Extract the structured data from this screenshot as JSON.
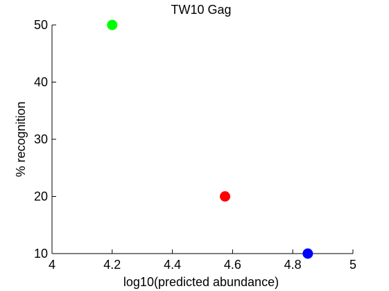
{
  "chart_data": {
    "type": "scatter",
    "title": "TW10 Gag",
    "xlabel": "log10(predicted abundance)",
    "ylabel": "% recognition",
    "xlim": [
      4,
      5
    ],
    "ylim": [
      10,
      50
    ],
    "x_ticks": [
      4,
      4.2,
      4.4,
      4.6,
      4.8,
      5
    ],
    "x_tick_labels": [
      "4",
      "4.2",
      "4.4",
      "4.6",
      "4.8",
      "5"
    ],
    "y_ticks": [
      10,
      20,
      30,
      40,
      50
    ],
    "y_tick_labels": [
      "10",
      "20",
      "30",
      "40",
      "50"
    ],
    "grid": false,
    "legend": "none",
    "points": [
      {
        "x": 4.2,
        "y": 50,
        "color": "#00ff00"
      },
      {
        "x": 4.575,
        "y": 20,
        "color": "#ff0000"
      },
      {
        "x": 4.85,
        "y": 10,
        "color": "#0000ff"
      }
    ]
  }
}
